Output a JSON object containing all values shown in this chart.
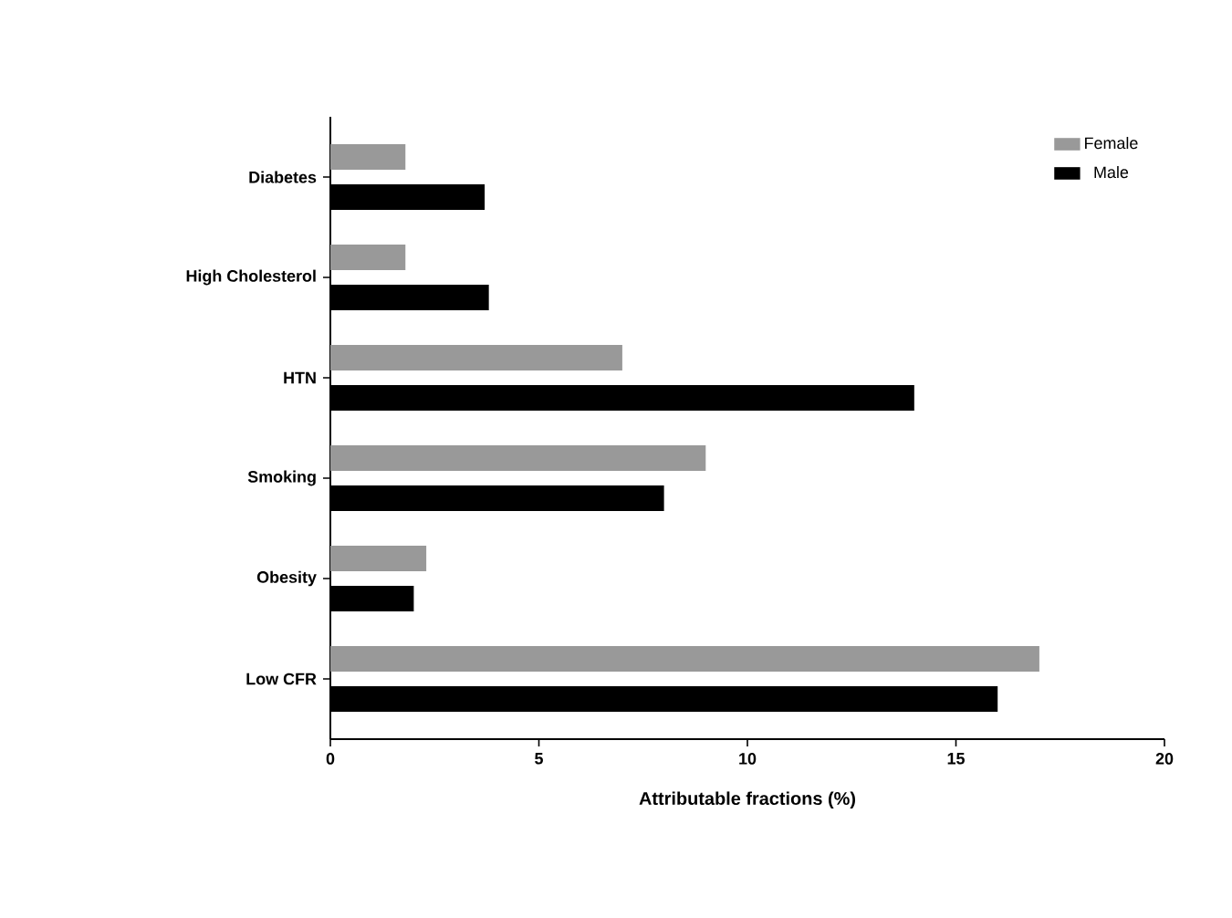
{
  "chart_data": {
    "type": "bar",
    "orientation": "horizontal",
    "xlabel": "Attributable fractions (%)",
    "categories": [
      "Diabetes",
      "High Cholesterol",
      "HTN",
      "Smoking",
      "Obesity",
      "Low CFR"
    ],
    "series": [
      {
        "name": "Female",
        "color": "#999999",
        "values": [
          1.8,
          1.8,
          7.0,
          9.0,
          2.3,
          17.0
        ]
      },
      {
        "name": "Male",
        "color": "#000000",
        "values": [
          3.7,
          3.8,
          14.0,
          8.0,
          2.0,
          16.0
        ]
      }
    ],
    "xlim": [
      0,
      20
    ],
    "xticks": [
      0,
      5,
      10,
      15,
      20
    ],
    "legend": "top right",
    "grid": false
  }
}
